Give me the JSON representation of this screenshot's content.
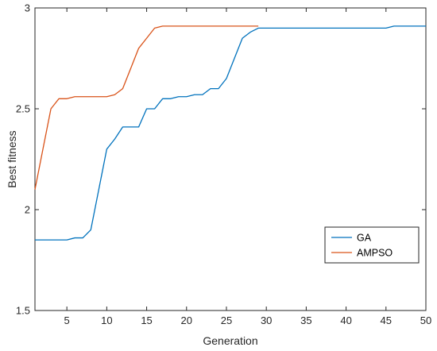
{
  "chart_data": {
    "type": "line",
    "xlabel": "Generation",
    "ylabel": "Best fitness",
    "xlim": [
      1,
      50
    ],
    "ylim": [
      1.5,
      3
    ],
    "xticks": [
      5,
      10,
      15,
      20,
      25,
      30,
      35,
      40,
      45,
      50
    ],
    "yticks": [
      1.5,
      2,
      2.5,
      3
    ],
    "ytick_labels": [
      "1.5",
      "2",
      "2.5",
      "3"
    ],
    "grid": false,
    "legend_position": "lower-right",
    "series": [
      {
        "name": "GA",
        "color": "#0072BD",
        "x": [
          1,
          2,
          3,
          4,
          5,
          6,
          7,
          8,
          9,
          10,
          11,
          12,
          13,
          14,
          15,
          16,
          17,
          18,
          19,
          20,
          21,
          22,
          23,
          24,
          25,
          26,
          27,
          28,
          29,
          30,
          35,
          40,
          45,
          46,
          47,
          48,
          49,
          50
        ],
        "y": [
          1.85,
          1.85,
          1.85,
          1.85,
          1.85,
          1.86,
          1.86,
          1.9,
          2.1,
          2.3,
          2.35,
          2.41,
          2.41,
          2.41,
          2.5,
          2.5,
          2.55,
          2.55,
          2.56,
          2.56,
          2.57,
          2.57,
          2.6,
          2.6,
          2.65,
          2.75,
          2.85,
          2.88,
          2.9,
          2.9,
          2.9,
          2.9,
          2.9,
          2.91,
          2.91,
          2.91,
          2.91,
          2.91
        ]
      },
      {
        "name": "AMPSO",
        "color": "#D95319",
        "x": [
          1,
          2,
          3,
          4,
          5,
          6,
          7,
          8,
          9,
          10,
          11,
          12,
          13,
          14,
          15,
          16,
          17,
          18,
          19,
          20,
          21,
          22,
          23,
          24,
          25,
          26,
          27,
          28,
          29
        ],
        "y": [
          2.1,
          2.3,
          2.5,
          2.55,
          2.55,
          2.56,
          2.56,
          2.56,
          2.56,
          2.56,
          2.57,
          2.6,
          2.7,
          2.8,
          2.85,
          2.9,
          2.91,
          2.91,
          2.91,
          2.91,
          2.91,
          2.91,
          2.91,
          2.91,
          2.91,
          2.91,
          2.91,
          2.91,
          2.91
        ]
      }
    ]
  }
}
